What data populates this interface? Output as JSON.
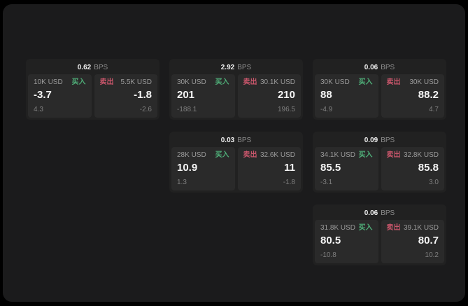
{
  "labels": {
    "bps": "BPS",
    "buy": "买入",
    "sell": "卖出"
  },
  "colors": {
    "buy": "#4fae78",
    "sell": "#c9566b",
    "page_bg": "#1b1b1c",
    "card_bg": "#212121",
    "panel_bg": "#2a2a2a"
  },
  "cards": [
    {
      "bps": "0.62",
      "buy": {
        "amount": "10K USD",
        "value": "-3.7",
        "delta": "4.3"
      },
      "sell": {
        "amount": "5.5K USD",
        "value": "-1.8",
        "delta": "-2.6"
      }
    },
    {
      "bps": "2.92",
      "buy": {
        "amount": "30K USD",
        "value": "201",
        "delta": "-188.1"
      },
      "sell": {
        "amount": "30.1K USD",
        "value": "210",
        "delta": "196.5"
      }
    },
    {
      "bps": "0.06",
      "buy": {
        "amount": "30K USD",
        "value": "88",
        "delta": "-4.9"
      },
      "sell": {
        "amount": "30K USD",
        "value": "88.2",
        "delta": "4.7"
      }
    },
    {
      "bps": "0.03",
      "buy": {
        "amount": "28K USD",
        "value": "10.9",
        "delta": "1.3"
      },
      "sell": {
        "amount": "32.6K USD",
        "value": "11",
        "delta": "-1.8"
      }
    },
    {
      "bps": "0.09",
      "buy": {
        "amount": "34.1K USD",
        "value": "85.5",
        "delta": "-3.1"
      },
      "sell": {
        "amount": "32.8K USD",
        "value": "85.8",
        "delta": "3.0"
      }
    },
    {
      "bps": "0.06",
      "buy": {
        "amount": "31.8K USD",
        "value": "80.5",
        "delta": "-10.8"
      },
      "sell": {
        "amount": "39.1K USD",
        "value": "80.7",
        "delta": "10.2"
      }
    }
  ]
}
